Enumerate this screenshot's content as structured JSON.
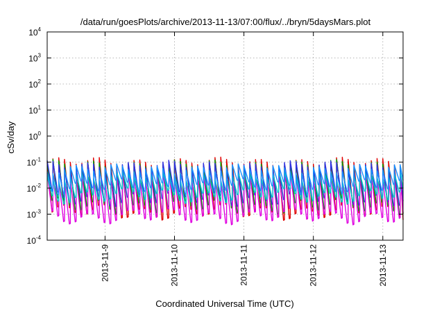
{
  "chart_data": {
    "type": "line",
    "title": "/data/run/goesPlots/archive/2013-11-13/07:00/flux/../bryn/5daysMars.plot",
    "xlabel": "Coordinated Universal Time (UTC)",
    "ylabel": "cSv/day",
    "yscale": "log",
    "ylim": [
      0.0001,
      10000
    ],
    "yticks": [
      {
        "base": "10",
        "exp": "4"
      },
      {
        "base": "10",
        "exp": "3"
      },
      {
        "base": "10",
        "exp": "2"
      },
      {
        "base": "10",
        "exp": "1"
      },
      {
        "base": "10",
        "exp": "0"
      },
      {
        "base": "10",
        "exp": "-1"
      },
      {
        "base": "10",
        "exp": "-2"
      },
      {
        "base": "10",
        "exp": "-3"
      },
      {
        "base": "10",
        "exp": "-4"
      }
    ],
    "xrange": [
      "2013-11-08 04:00",
      "2013-11-13 07:00"
    ],
    "xticks": [
      "2013-11-9",
      "2013-11-10",
      "2013-11-11",
      "2013-11-12",
      "2013-11-13"
    ],
    "grid": true,
    "oscillation_period_hours": 2,
    "series": [
      {
        "color": "#e00000",
        "peak": 0.1,
        "trough": 0.0012
      },
      {
        "color": "#00a000",
        "peak": 0.08,
        "trough": 0.002
      },
      {
        "color": "#3030e0",
        "peak": 0.075,
        "trough": 0.004
      },
      {
        "color": "#e000e0",
        "peak": 0.028,
        "trough": 0.0008
      },
      {
        "color": "#00c8c8",
        "peak": 0.03,
        "trough": 0.005
      },
      {
        "color": "#1890ff",
        "peak": 0.055,
        "trough": 0.011
      }
    ]
  }
}
